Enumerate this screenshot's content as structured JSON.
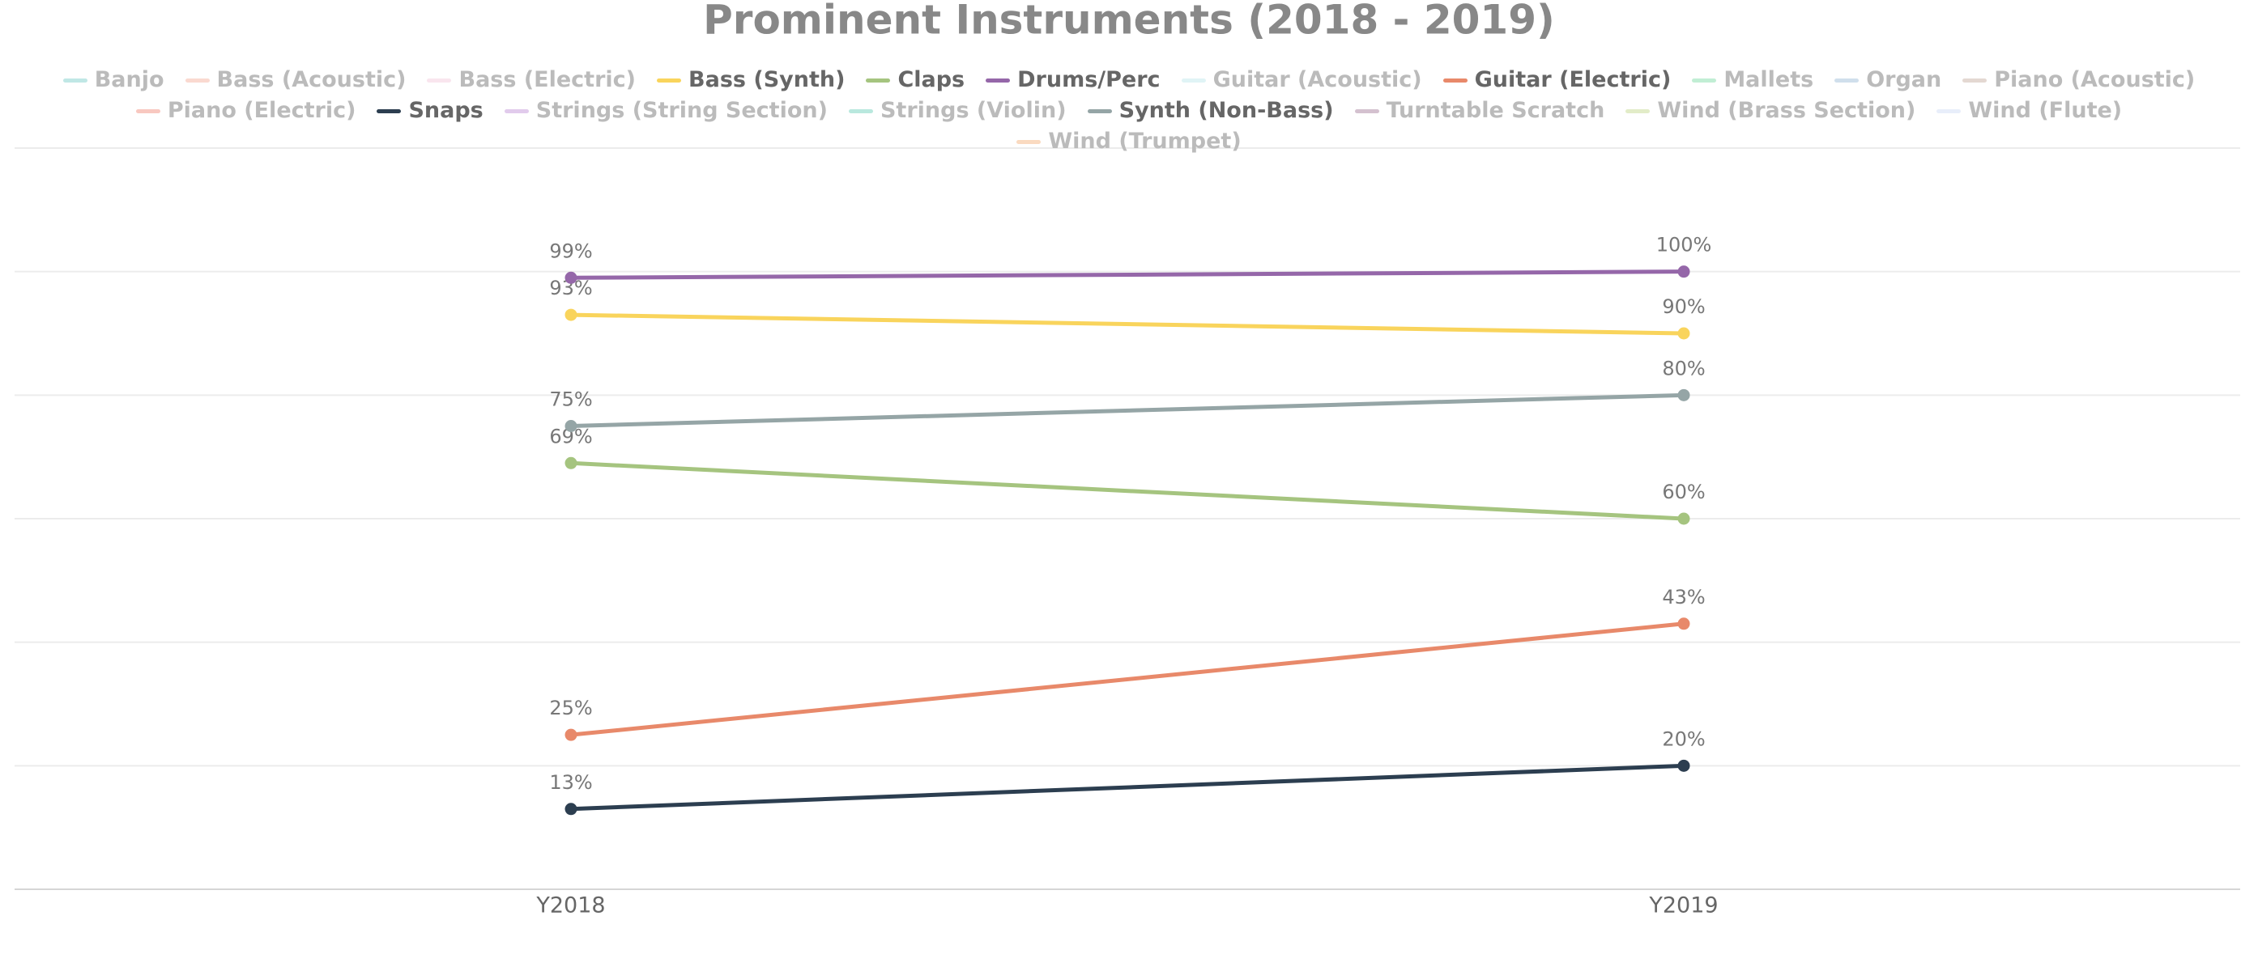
{
  "chart_data": {
    "type": "line",
    "title": "Prominent Instruments (2018 - 2019)",
    "categories": [
      "Y2018",
      "Y2019"
    ],
    "ylim": [
      0,
      120
    ],
    "yticks": [
      0,
      20,
      40,
      60,
      80,
      100,
      120
    ],
    "grid": true,
    "show_ytick_labels": false,
    "series": [
      {
        "name": "Banjo",
        "color": "#8dd3d0",
        "visible": false,
        "values": [
          null,
          null
        ]
      },
      {
        "name": "Bass (Acoustic)",
        "color": "#f6b9a9",
        "visible": false,
        "values": [
          null,
          null
        ]
      },
      {
        "name": "Bass (Electric)",
        "color": "#f4d0e0",
        "visible": false,
        "values": [
          null,
          null
        ]
      },
      {
        "name": "Bass (Synth)",
        "color": "#f9d45c",
        "visible": true,
        "values": [
          93,
          90
        ],
        "value_labels": [
          "93%",
          "90%"
        ]
      },
      {
        "name": "Claps",
        "color": "#a5c47f",
        "visible": true,
        "values": [
          69,
          60
        ],
        "value_labels": [
          "69%",
          "60%"
        ]
      },
      {
        "name": "Drums/Perc",
        "color": "#9567a9",
        "visible": true,
        "values": [
          99,
          100
        ],
        "value_labels": [
          "99%",
          "100%"
        ]
      },
      {
        "name": "Guitar (Acoustic)",
        "color": "#c7ebee",
        "visible": false,
        "values": [
          null,
          null
        ]
      },
      {
        "name": "Guitar (Electric)",
        "color": "#e8896a",
        "visible": true,
        "values": [
          25,
          43
        ],
        "value_labels": [
          "25%",
          "43%"
        ]
      },
      {
        "name": "Mallets",
        "color": "#8ee0b0",
        "visible": false,
        "values": [
          null,
          null
        ]
      },
      {
        "name": "Organ",
        "color": "#a9c4dd",
        "visible": false,
        "values": [
          null,
          null
        ]
      },
      {
        "name": "Piano (Acoustic)",
        "color": "#cdb8ad",
        "visible": false,
        "values": [
          null,
          null
        ]
      },
      {
        "name": "Piano (Electric)",
        "color": "#f29b8c",
        "visible": false,
        "values": [
          null,
          null
        ]
      },
      {
        "name": "Snaps",
        "color": "#2c3e50",
        "visible": true,
        "values": [
          13,
          20
        ],
        "value_labels": [
          "13%",
          "20%"
        ]
      },
      {
        "name": "Strings (String Section)",
        "color": "#c9a0dc",
        "visible": false,
        "values": [
          null,
          null
        ]
      },
      {
        "name": "Strings (Violin)",
        "color": "#7fd6c2",
        "visible": false,
        "values": [
          null,
          null
        ]
      },
      {
        "name": "Synth (Non-Bass)",
        "color": "#95a5a6",
        "visible": true,
        "values": [
          75,
          80
        ],
        "value_labels": [
          "75%",
          "80%"
        ]
      },
      {
        "name": "Turntable Scratch",
        "color": "#b08ea8",
        "visible": false,
        "values": [
          null,
          null
        ]
      },
      {
        "name": "Wind (Brass Section)",
        "color": "#cbdd9a",
        "visible": false,
        "values": [
          null,
          null
        ]
      },
      {
        "name": "Wind (Flute)",
        "color": "#d6e0f5",
        "visible": false,
        "values": [
          null,
          null
        ]
      },
      {
        "name": "Wind (Trumpet)",
        "color": "#f6bb8c",
        "visible": false,
        "values": [
          null,
          null
        ]
      }
    ]
  }
}
